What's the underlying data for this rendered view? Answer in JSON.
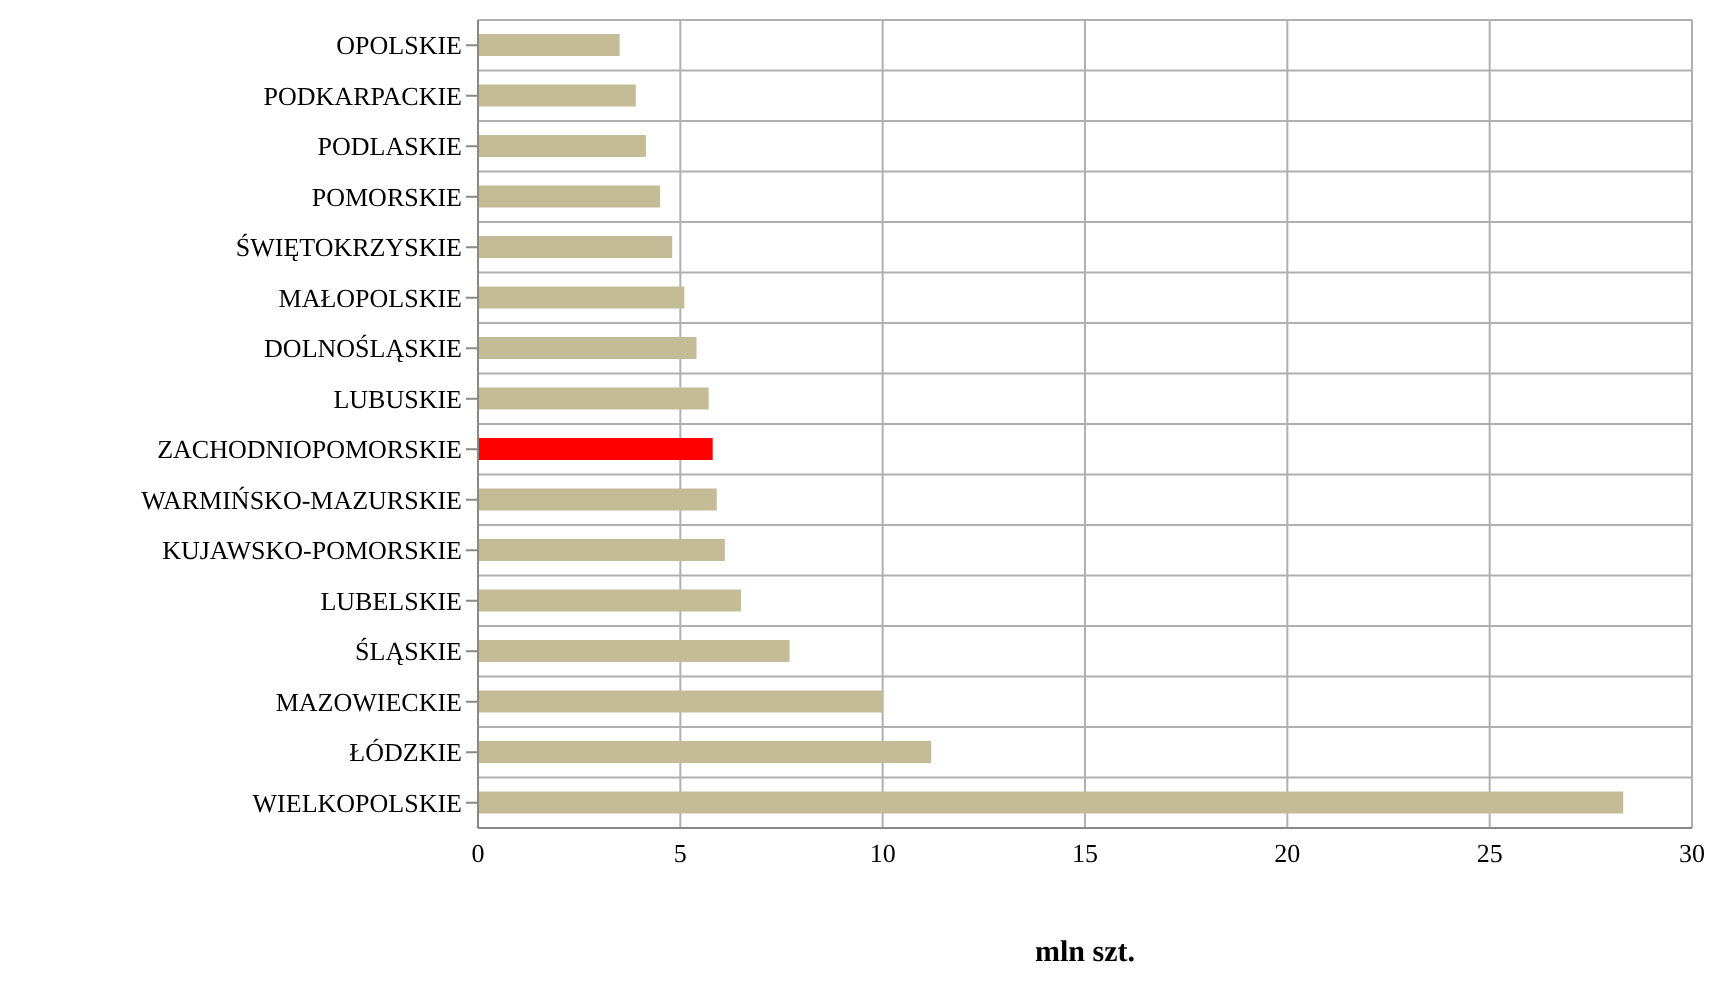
{
  "chart_data": {
    "type": "bar",
    "orientation": "horizontal",
    "xlabel": "mln szt.",
    "categories": [
      "OPOLSKIE",
      "PODKARPACKIE",
      "PODLASKIE",
      "POMORSKIE",
      "ŚWIĘTOKRZYSKIE",
      "MAŁOPOLSKIE",
      "DOLNOŚLĄSKIE",
      "LUBUSKIE",
      "ZACHODNIOPOMORSKIE",
      "WARMIŃSKO-MAZURSKIE",
      "KUJAWSKO-POMORSKIE",
      "LUBELSKIE",
      "ŚLĄSKIE",
      "MAZOWIECKIE",
      "ŁÓDZKIE",
      "WIELKOPOLSKIE"
    ],
    "values": [
      3.5,
      3.9,
      4.15,
      4.5,
      4.8,
      5.1,
      5.4,
      5.7,
      5.8,
      5.9,
      6.1,
      6.5,
      7.7,
      10.0,
      11.2,
      28.3
    ],
    "colors": [
      "#c4bc96",
      "#c4bc96",
      "#c4bc96",
      "#c4bc96",
      "#c4bc96",
      "#c4bc96",
      "#c4bc96",
      "#c4bc96",
      "#ff0000",
      "#c4bc96",
      "#c4bc96",
      "#c4bc96",
      "#c4bc96",
      "#c4bc96",
      "#c4bc96",
      "#c4bc96"
    ],
    "xlim": [
      0,
      30
    ],
    "xticks": [
      0,
      5,
      10,
      15,
      20,
      25,
      30
    ],
    "grid": true
  }
}
